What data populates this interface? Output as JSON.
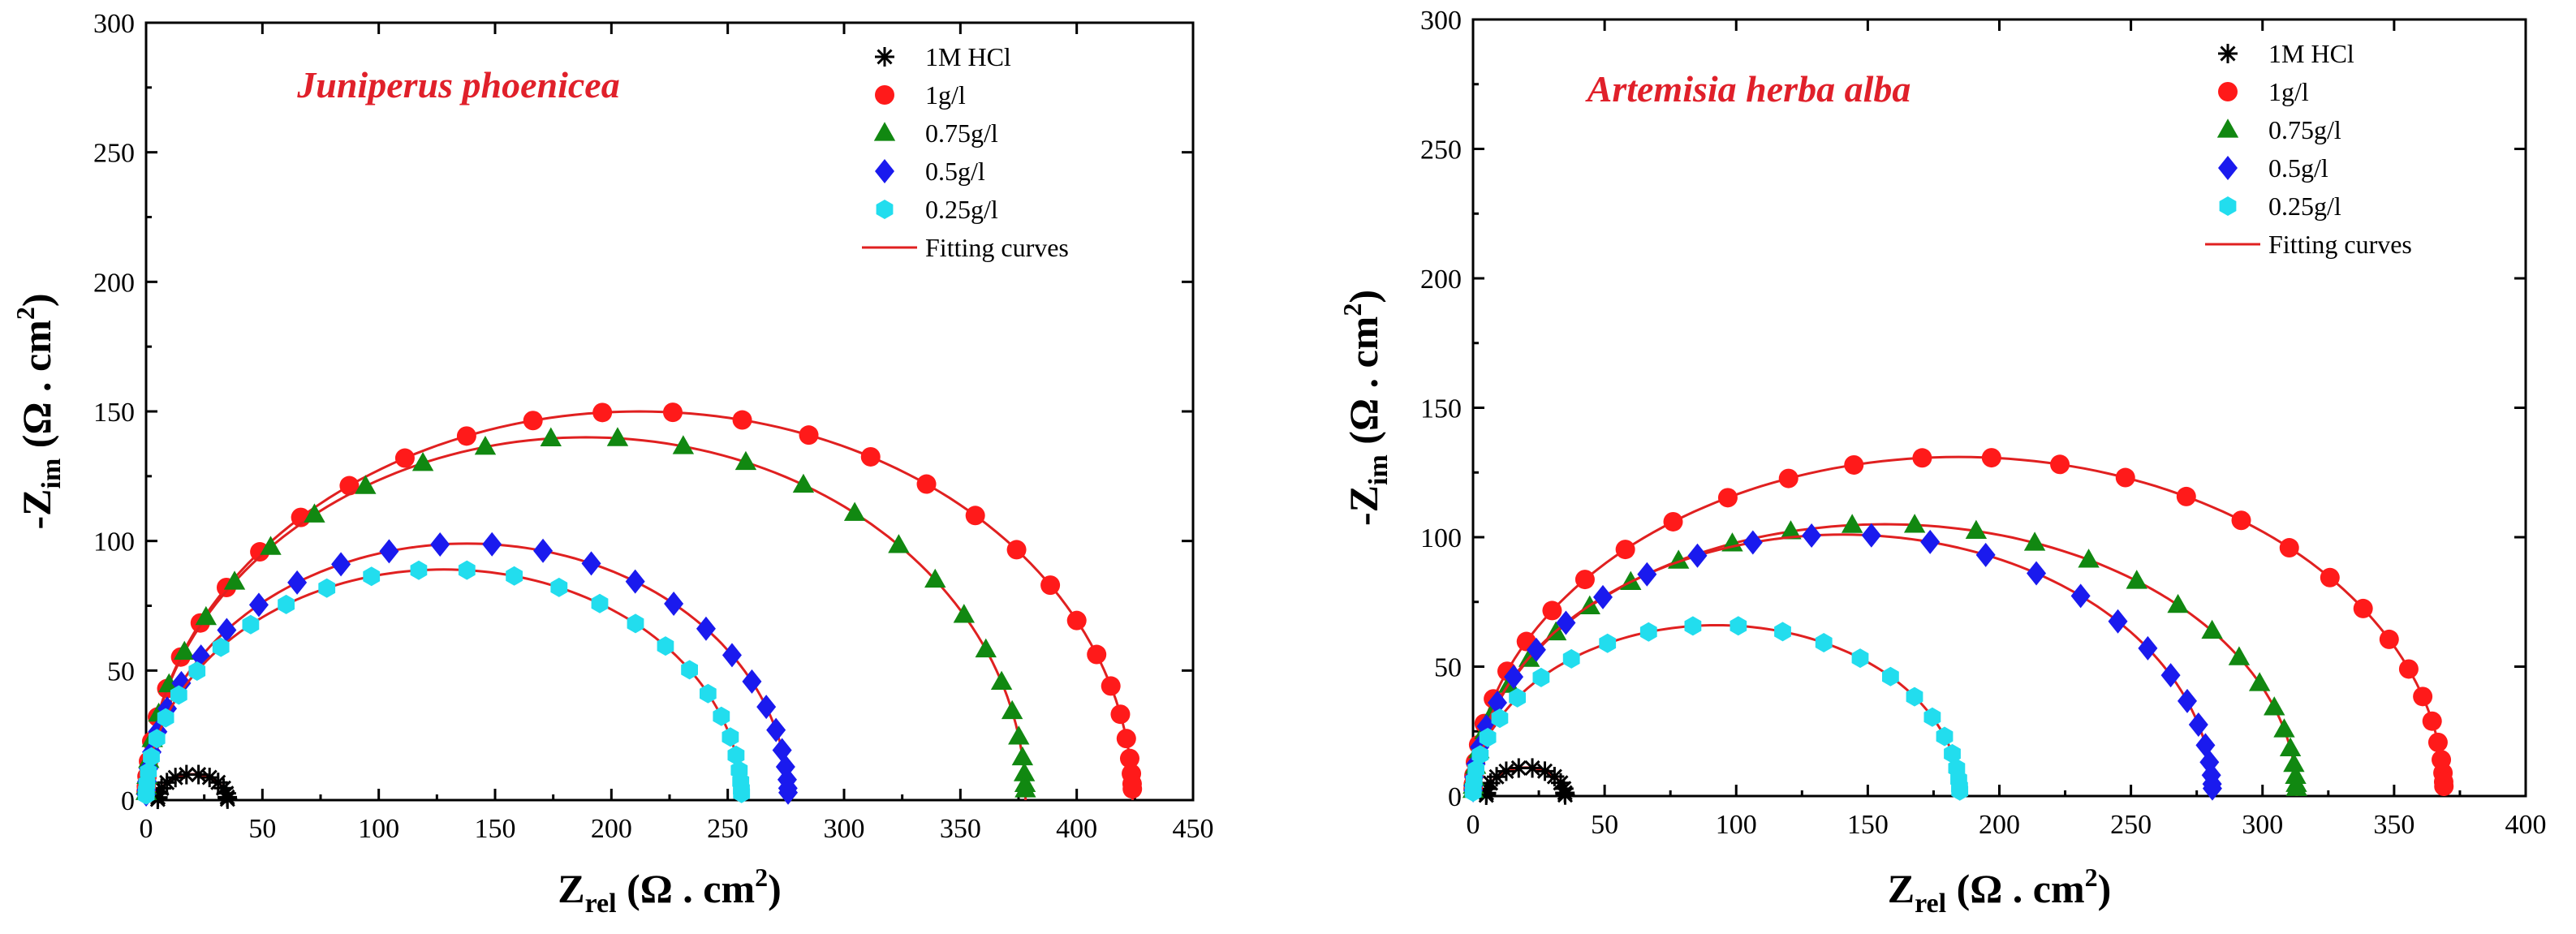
{
  "chart_data": [
    {
      "type": "scatter",
      "title": "Juniperus phoenicea",
      "xlabel": "Zrel (Ω . cm2)",
      "ylabel": "-Zim (Ω . cm2)",
      "xlim": [
        0,
        450
      ],
      "ylim": [
        0,
        300
      ],
      "xticks": [
        0,
        50,
        100,
        150,
        200,
        250,
        300,
        350,
        400,
        450
      ],
      "yticks": [
        0,
        50,
        100,
        150,
        200,
        250,
        300
      ],
      "fit_label": "Fitting curves",
      "fit_color": "#e02020",
      "series": [
        {
          "name": "1M HCl",
          "marker": "asterisk",
          "color": "#000000",
          "r0": 5,
          "r1": 35,
          "ymax": 10,
          "n": 14
        },
        {
          "name": "1g/l",
          "marker": "circle",
          "color": "#ff1a1a",
          "r0": 0,
          "r1": 424,
          "ymax": 150,
          "n": 34
        },
        {
          "name": "0.75g/l",
          "marker": "triangle",
          "color": "#118811",
          "r0": 0,
          "r1": 378,
          "ymax": 140,
          "n": 32
        },
        {
          "name": "0.5g/l",
          "marker": "diamond",
          "color": "#1a1aee",
          "r0": 0,
          "r1": 276,
          "ymax": 99,
          "n": 30
        },
        {
          "name": "0.25g/l",
          "marker": "hexagon",
          "color": "#22ddee",
          "r0": 0,
          "r1": 256,
          "ymax": 89,
          "n": 30
        }
      ]
    },
    {
      "type": "scatter",
      "title": "Artemisia herba alba",
      "xlabel": "Zrel (Ω . cm2)",
      "ylabel": "-Zim (Ω . cm2)",
      "xlim": [
        0,
        400
      ],
      "ylim": [
        0,
        300
      ],
      "xticks": [
        0,
        50,
        100,
        150,
        200,
        250,
        300,
        350,
        400
      ],
      "yticks": [
        0,
        50,
        100,
        150,
        200,
        250,
        300
      ],
      "fit_label": "Fitting curves",
      "fit_color": "#e02020",
      "series": [
        {
          "name": "1M HCl",
          "marker": "asterisk",
          "color": "#000000",
          "r0": 5,
          "r1": 35,
          "ymax": 11,
          "n": 14
        },
        {
          "name": "1g/l",
          "marker": "circle",
          "color": "#ff1a1a",
          "r0": 0,
          "r1": 369,
          "ymax": 131,
          "n": 34
        },
        {
          "name": "0.75g/l",
          "marker": "triangle",
          "color": "#118811",
          "r0": 0,
          "r1": 313,
          "ymax": 105,
          "n": 32
        },
        {
          "name": "0.5g/l",
          "marker": "diamond",
          "color": "#1a1aee",
          "r0": 0,
          "r1": 281,
          "ymax": 101,
          "n": 30
        },
        {
          "name": "0.25g/l",
          "marker": "hexagon",
          "color": "#22ddee",
          "r0": 0,
          "r1": 185,
          "ymax": 66,
          "n": 26
        }
      ]
    }
  ]
}
